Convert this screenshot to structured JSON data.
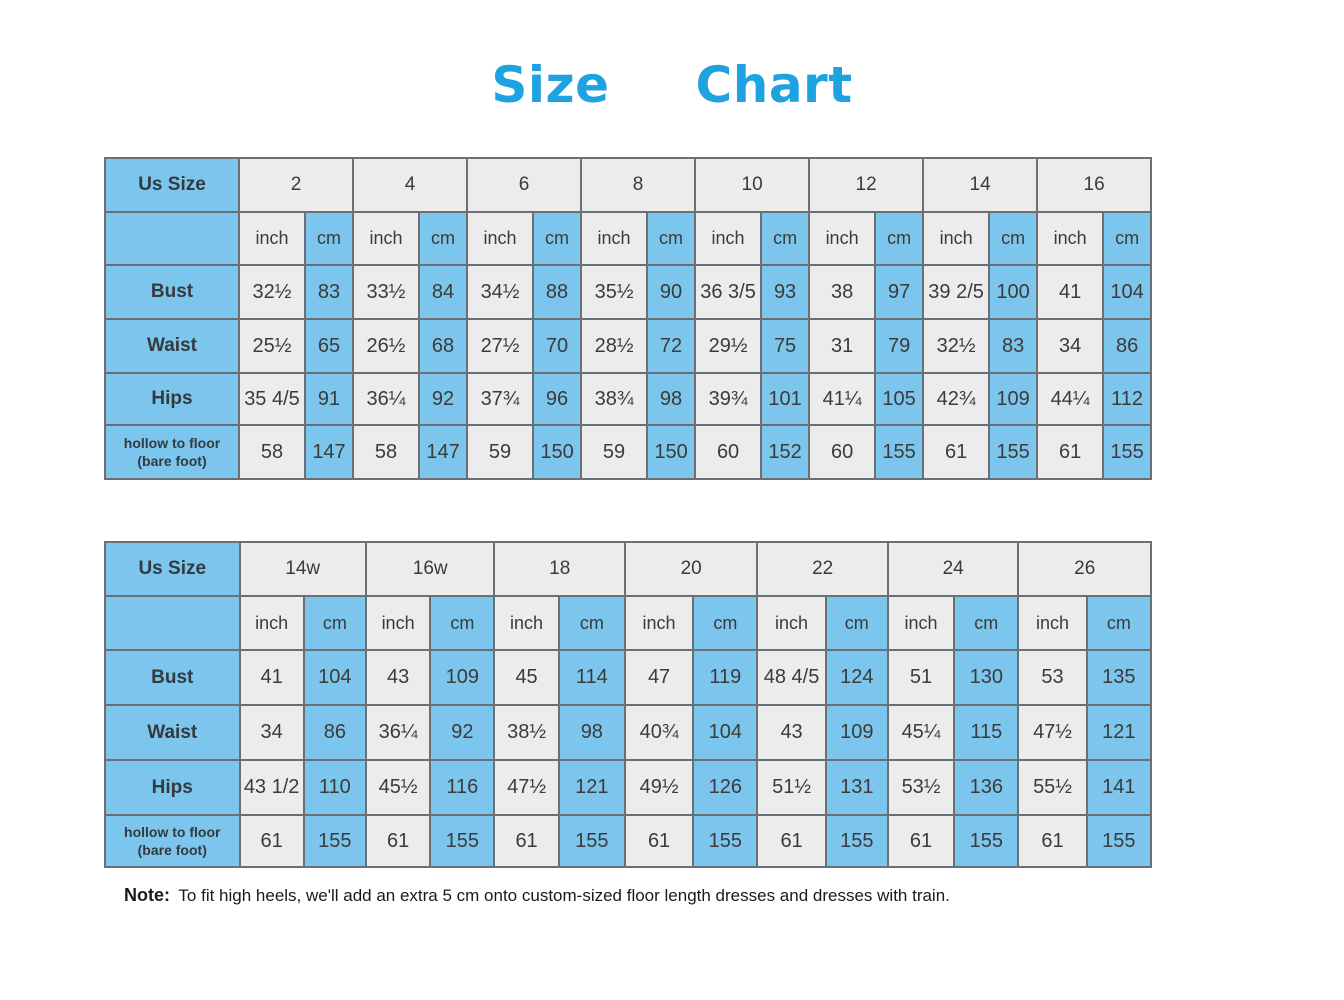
{
  "title": {
    "word1": "Size",
    "word2": "Chart"
  },
  "table1": {
    "size_label": "Us Size",
    "sizes": [
      "2",
      "4",
      "6",
      "8",
      "10",
      "12",
      "14",
      "16"
    ],
    "units": [
      "inch",
      "cm"
    ],
    "rows": [
      {
        "label": "Bust",
        "values": [
          "32½",
          "83",
          "33½",
          "84",
          "34½",
          "88",
          "35½",
          "90",
          "36 3/5",
          "93",
          "38",
          "97",
          "39 2/5",
          "100",
          "41",
          "104"
        ]
      },
      {
        "label": "Waist",
        "values": [
          "25½",
          "65",
          "26½",
          "68",
          "27½",
          "70",
          "28½",
          "72",
          "29½",
          "75",
          "31",
          "79",
          "32½",
          "83",
          "34",
          "86"
        ]
      },
      {
        "label": "Hips",
        "values": [
          "35 4/5",
          "91",
          "36¼",
          "92",
          "37¾",
          "96",
          "38¾",
          "98",
          "39¾",
          "101",
          "41¼",
          "105",
          "42¾",
          "109",
          "44¼",
          "112"
        ]
      },
      {
        "label": "hollow to floor (bare foot)",
        "values": [
          "58",
          "147",
          "58",
          "147",
          "59",
          "150",
          "59",
          "150",
          "60",
          "152",
          "60",
          "155",
          "61",
          "155",
          "61",
          "155"
        ]
      }
    ]
  },
  "table2": {
    "size_label": "Us Size",
    "sizes": [
      "14w",
      "16w",
      "18",
      "20",
      "22",
      "24",
      "26"
    ],
    "units": [
      "inch",
      "cm"
    ],
    "rows": [
      {
        "label": "Bust",
        "values": [
          "41",
          "104",
          "43",
          "109",
          "45",
          "114",
          "47",
          "119",
          "48 4/5",
          "124",
          "51",
          "130",
          "53",
          "135"
        ]
      },
      {
        "label": "Waist",
        "values": [
          "34",
          "86",
          "36¼",
          "92",
          "38½",
          "98",
          "40¾",
          "104",
          "43",
          "109",
          "45¼",
          "115",
          "47½",
          "121"
        ]
      },
      {
        "label": "Hips",
        "values": [
          "43 1/2",
          "110",
          "45½",
          "116",
          "47½",
          "121",
          "49½",
          "126",
          "51½",
          "131",
          "53½",
          "136",
          "55½",
          "141"
        ]
      },
      {
        "label": "hollow to floor (bare foot)",
        "values": [
          "61",
          "155",
          "61",
          "155",
          "61",
          "155",
          "61",
          "155",
          "61",
          "155",
          "61",
          "155",
          "61",
          "155"
        ]
      }
    ]
  },
  "note": {
    "label": "Note:",
    "text": "To fit high heels, we'll add an extra 5 cm onto custom-sized floor length dresses and dresses with train."
  },
  "colors": {
    "accent": "#1ea3e0",
    "blue_cell": "#7cc5ec",
    "gray_cell": "#ececec",
    "border": "#6c7076"
  }
}
